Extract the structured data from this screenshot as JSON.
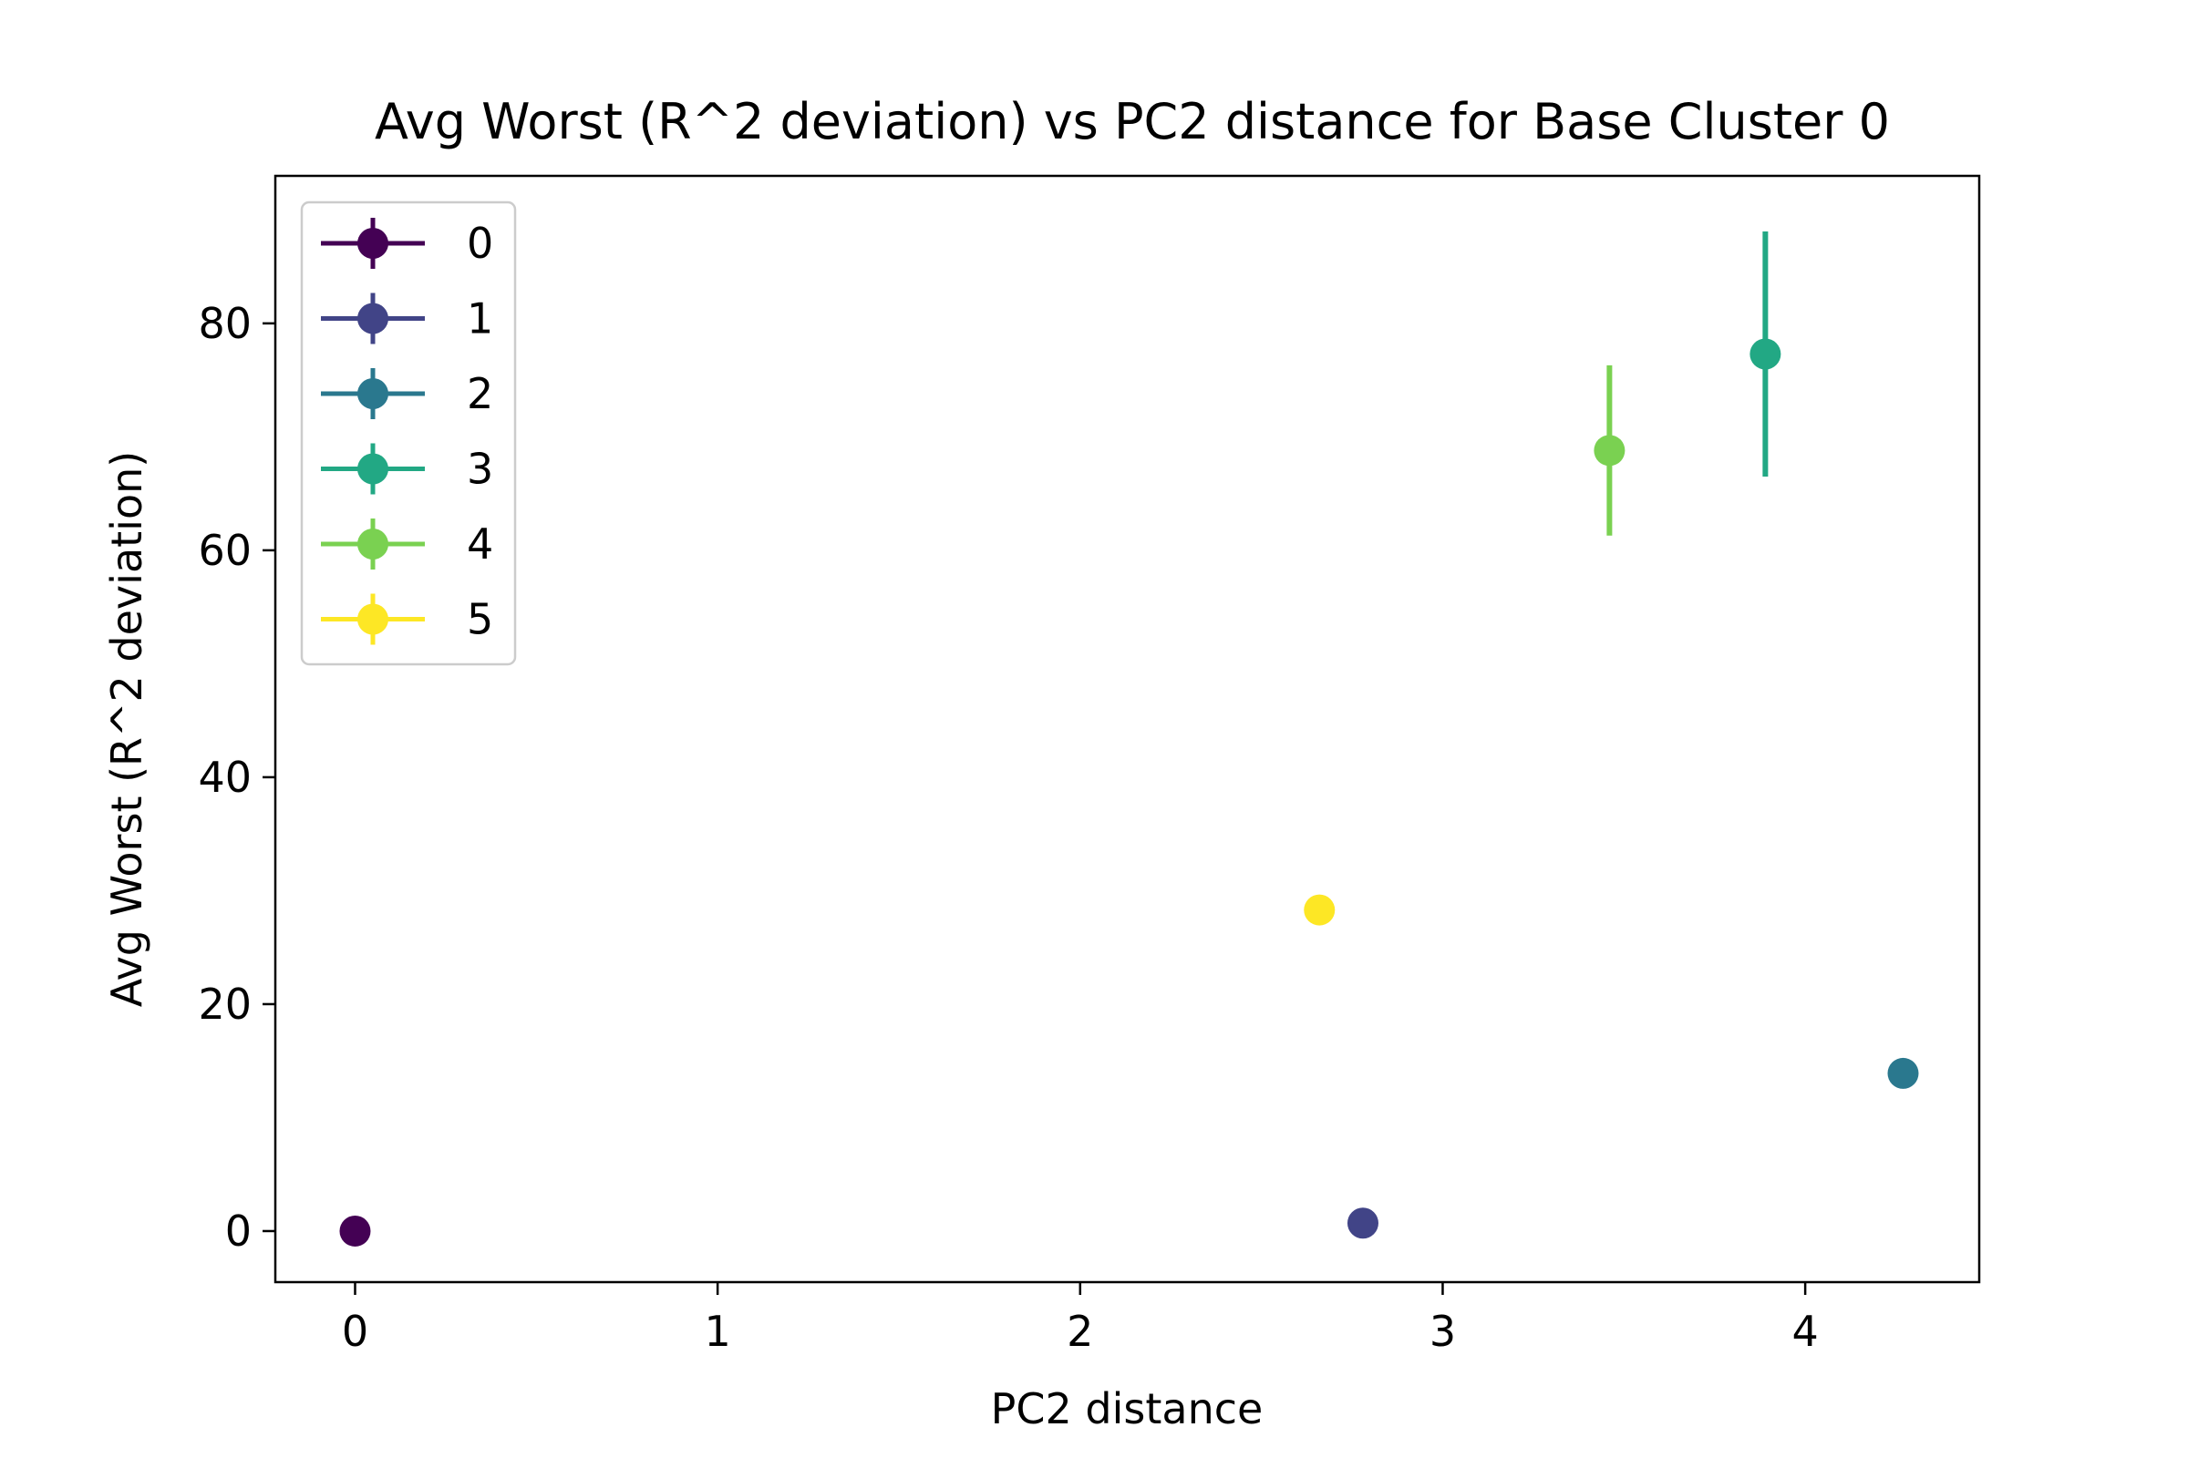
{
  "chart_data": {
    "type": "scatter",
    "title": "Avg Worst (R^2 deviation) vs PC2 distance for Base Cluster 0",
    "xlabel": "PC2 distance",
    "ylabel": "Avg Worst (R^2 deviation)",
    "xlim": [
      -0.22,
      4.48
    ],
    "ylim": [
      -4.5,
      93
    ],
    "xticks": [
      0,
      1,
      2,
      3,
      4
    ],
    "yticks": [
      0,
      20,
      40,
      60,
      80
    ],
    "grid": false,
    "legend_position": "top-left",
    "series": [
      {
        "name": "0",
        "color": "#440154",
        "x": 0.0,
        "y": 0.0,
        "err": 0.0
      },
      {
        "name": "1",
        "color": "#414487",
        "x": 2.78,
        "y": 0.7,
        "err": 0.0
      },
      {
        "name": "2",
        "color": "#2a788e",
        "x": 4.27,
        "y": 13.9,
        "err": 1.2
      },
      {
        "name": "3",
        "color": "#22a884",
        "x": 3.89,
        "y": 77.3,
        "err": 10.8
      },
      {
        "name": "4",
        "color": "#7ad151",
        "x": 3.46,
        "y": 68.8,
        "err": 7.5
      },
      {
        "name": "5",
        "color": "#fde725",
        "x": 2.66,
        "y": 28.3,
        "err": 0.0
      }
    ]
  }
}
